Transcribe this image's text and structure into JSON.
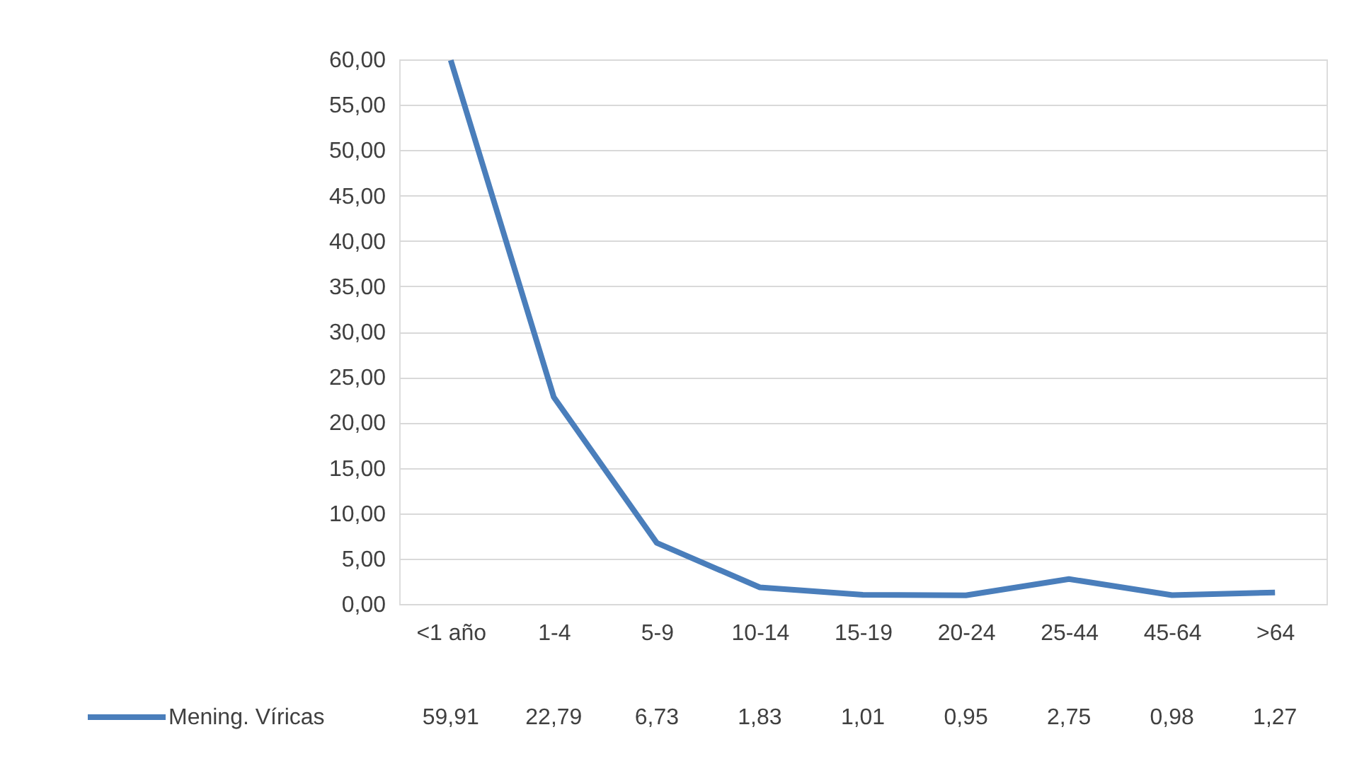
{
  "chart_data": {
    "type": "line",
    "categories": [
      "<1 año",
      "1-4",
      "5-9",
      "10-14",
      "15-19",
      "20-24",
      "25-44",
      "45-64",
      ">64"
    ],
    "series": [
      {
        "name": "Mening. Víricas",
        "color": "#4a7ebb",
        "values": [
          59.91,
          22.79,
          6.73,
          1.83,
          1.01,
          0.95,
          2.75,
          0.98,
          1.27
        ],
        "value_labels": [
          "59,91",
          "22,79",
          "6,73",
          "1,83",
          "1,01",
          "0,95",
          "2,75",
          "0,98",
          "1,27"
        ]
      }
    ],
    "ylim": [
      0,
      60
    ],
    "yticks": [
      {
        "value": 0,
        "label": "0,00"
      },
      {
        "value": 5,
        "label": "5,00"
      },
      {
        "value": 10,
        "label": "10,00"
      },
      {
        "value": 15,
        "label": "15,00"
      },
      {
        "value": 20,
        "label": "20,00"
      },
      {
        "value": 25,
        "label": "25,00"
      },
      {
        "value": 30,
        "label": "30,00"
      },
      {
        "value": 35,
        "label": "35,00"
      },
      {
        "value": 40,
        "label": "40,00"
      },
      {
        "value": 45,
        "label": "45,00"
      },
      {
        "value": 50,
        "label": "50,00"
      },
      {
        "value": 55,
        "label": "55,00"
      },
      {
        "value": 60,
        "label": "60,00"
      }
    ],
    "grid": "y",
    "legend": "bottom left",
    "marker": "none",
    "line_style": "solid"
  }
}
